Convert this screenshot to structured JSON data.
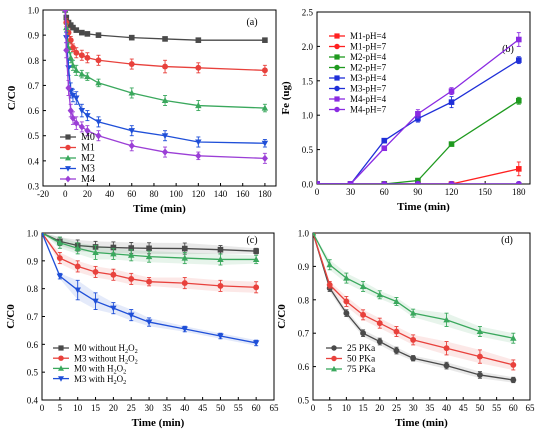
{
  "chart_data": [
    {
      "id": "a",
      "type": "line",
      "panel_label": "(a)",
      "xlabel": "Time (min)",
      "ylabel": "C/C0",
      "xlim": [
        -20,
        190
      ],
      "ylim": [
        0.3,
        1.0
      ],
      "xticks": [
        -20,
        0,
        20,
        40,
        60,
        80,
        100,
        120,
        140,
        160,
        180
      ],
      "yticks": [
        0.3,
        0.4,
        0.5,
        0.6,
        0.7,
        0.8,
        0.9,
        1.0
      ],
      "legend_position": "bottom-left",
      "series": [
        {
          "name": "M0",
          "color": "#4a4a4a",
          "marker": "square",
          "x": [
            0,
            1,
            3,
            5,
            7,
            10,
            15,
            20,
            30,
            60,
            90,
            120,
            180
          ],
          "y": [
            1.0,
            0.97,
            0.95,
            0.94,
            0.93,
            0.92,
            0.91,
            0.905,
            0.9,
            0.89,
            0.885,
            0.88,
            0.88
          ],
          "err": [
            0,
            0.008,
            0.008,
            0.008,
            0.008,
            0.008,
            0.008,
            0.008,
            0.006,
            0.006,
            0.005,
            0.005,
            0.004
          ]
        },
        {
          "name": "M1",
          "color": "#e8413c",
          "marker": "circle",
          "x": [
            0,
            1,
            3,
            5,
            7,
            10,
            15,
            20,
            30,
            60,
            90,
            120,
            180
          ],
          "y": [
            1.0,
            0.95,
            0.91,
            0.88,
            0.85,
            0.83,
            0.82,
            0.81,
            0.8,
            0.785,
            0.775,
            0.77,
            0.76
          ],
          "err": [
            0,
            0.015,
            0.015,
            0.015,
            0.015,
            0.02,
            0.02,
            0.02,
            0.02,
            0.02,
            0.025,
            0.02,
            0.02
          ]
        },
        {
          "name": "M2",
          "color": "#3aa85d",
          "marker": "triangle-up",
          "x": [
            0,
            1,
            3,
            5,
            7,
            10,
            15,
            20,
            30,
            60,
            90,
            120,
            180
          ],
          "y": [
            1.0,
            0.93,
            0.85,
            0.81,
            0.78,
            0.76,
            0.745,
            0.735,
            0.71,
            0.67,
            0.64,
            0.62,
            0.61
          ],
          "err": [
            0,
            0.015,
            0.02,
            0.02,
            0.02,
            0.02,
            0.015,
            0.015,
            0.015,
            0.02,
            0.02,
            0.02,
            0.015
          ]
        },
        {
          "name": "M3",
          "color": "#1f4fd8",
          "marker": "triangle-down",
          "x": [
            0,
            1,
            3,
            5,
            7,
            10,
            15,
            20,
            30,
            60,
            90,
            120,
            180
          ],
          "y": [
            1.0,
            0.89,
            0.77,
            0.68,
            0.66,
            0.65,
            0.6,
            0.58,
            0.555,
            0.52,
            0.5,
            0.475,
            0.47
          ],
          "err": [
            0,
            0.02,
            0.03,
            0.03,
            0.025,
            0.025,
            0.025,
            0.02,
            0.02,
            0.02,
            0.02,
            0.02,
            0.015
          ]
        },
        {
          "name": "M4",
          "color": "#9b3fd6",
          "marker": "diamond",
          "x": [
            0,
            1,
            3,
            5,
            7,
            10,
            15,
            20,
            30,
            60,
            90,
            120,
            180
          ],
          "y": [
            1.0,
            0.84,
            0.69,
            0.6,
            0.57,
            0.55,
            0.535,
            0.52,
            0.5,
            0.46,
            0.435,
            0.42,
            0.41
          ],
          "err": [
            0,
            0.03,
            0.03,
            0.025,
            0.025,
            0.025,
            0.02,
            0.02,
            0.02,
            0.02,
            0.02,
            0.015,
            0.02
          ]
        }
      ]
    },
    {
      "id": "b",
      "type": "line",
      "panel_label": "(b)",
      "xlabel": "Time (min)",
      "ylabel": "Fe (ug)",
      "xlim": [
        0,
        190
      ],
      "ylim": [
        0.0,
        2.5
      ],
      "xticks": [
        0,
        30,
        60,
        90,
        120,
        150,
        180
      ],
      "yticks": [
        0.0,
        0.5,
        1.0,
        1.5,
        2.0,
        2.5
      ],
      "legend_position": "top-left",
      "series": [
        {
          "name": "M1-pH=4",
          "color": "#ff2020",
          "marker": "square",
          "x": [
            0,
            30,
            60,
            90,
            120,
            180
          ],
          "y": [
            0,
            0,
            0,
            0,
            0,
            0.22
          ],
          "err": [
            0,
            0,
            0,
            0,
            0,
            0.1
          ]
        },
        {
          "name": "M1-pH=7",
          "color": "#ff2020",
          "marker": "circle",
          "x": [
            0,
            30,
            60,
            90,
            120,
            180
          ],
          "y": [
            0,
            0,
            0,
            0,
            0,
            0
          ],
          "err": [
            0,
            0,
            0,
            0,
            0,
            0
          ]
        },
        {
          "name": "M2-pH=4",
          "color": "#1f9a1f",
          "marker": "square",
          "x": [
            0,
            30,
            60,
            90,
            120,
            180
          ],
          "y": [
            0,
            0,
            0,
            0.05,
            0.58,
            1.21
          ],
          "err": [
            0,
            0,
            0,
            0.01,
            0.02,
            0.05
          ]
        },
        {
          "name": "M2-pH=7",
          "color": "#1f9a1f",
          "marker": "circle",
          "x": [
            0,
            30,
            60,
            90,
            120,
            180
          ],
          "y": [
            0,
            0,
            0,
            0,
            0,
            0
          ],
          "err": [
            0,
            0,
            0,
            0,
            0,
            0
          ]
        },
        {
          "name": "M3-pH=4",
          "color": "#1f2fd8",
          "marker": "square",
          "x": [
            0,
            30,
            60,
            90,
            120,
            180
          ],
          "y": [
            0,
            0,
            0.63,
            0.95,
            1.19,
            1.8
          ],
          "err": [
            0,
            0,
            0.03,
            0.05,
            0.08,
            0.05
          ]
        },
        {
          "name": "M3-pH=7",
          "color": "#1f2fd8",
          "marker": "circle",
          "x": [
            0,
            30,
            60,
            90,
            120,
            180
          ],
          "y": [
            0,
            0,
            0,
            0,
            0,
            0
          ],
          "err": [
            0,
            0,
            0,
            0,
            0,
            0
          ]
        },
        {
          "name": "M4-pH=4",
          "color": "#8a2be2",
          "marker": "square",
          "x": [
            0,
            30,
            60,
            90,
            120,
            180
          ],
          "y": [
            0,
            0,
            0.52,
            1.02,
            1.35,
            2.1
          ],
          "err": [
            0,
            0,
            0.03,
            0.06,
            0.05,
            0.1
          ]
        },
        {
          "name": "M4-pH=7",
          "color": "#8a2be2",
          "marker": "circle",
          "x": [
            0,
            30,
            60,
            90,
            120,
            180
          ],
          "y": [
            0,
            0,
            0,
            0,
            0,
            0
          ],
          "err": [
            0,
            0,
            0,
            0,
            0,
            0
          ]
        }
      ]
    },
    {
      "id": "c",
      "type": "line",
      "panel_label": "(c)",
      "xlabel": "Time (min)",
      "ylabel": "C/C0",
      "xlim": [
        0,
        65
      ],
      "ylim": [
        0.4,
        1.0
      ],
      "xticks": [
        0,
        5,
        10,
        15,
        20,
        25,
        30,
        35,
        40,
        45,
        50,
        55,
        60,
        65
      ],
      "yticks": [
        0.4,
        0.5,
        0.6,
        0.7,
        0.8,
        0.9,
        1.0
      ],
      "legend_position": "bottom-left",
      "series": [
        {
          "name": "M0 without H",
          "sub": "2",
          "name2": "O",
          "sub2": "2",
          "color": "#4a4a4a",
          "marker": "square",
          "x": [
            0,
            5,
            10,
            15,
            20,
            25,
            30,
            40,
            50,
            60
          ],
          "y": [
            1.0,
            0.97,
            0.955,
            0.95,
            0.948,
            0.946,
            0.945,
            0.944,
            0.94,
            0.935
          ],
          "err": [
            0,
            0.015,
            0.02,
            0.02,
            0.02,
            0.02,
            0.02,
            0.02,
            0.015,
            0.01
          ]
        },
        {
          "name": "M3 without H",
          "sub": "2",
          "name2": "O",
          "sub2": "2",
          "color": "#e8413c",
          "marker": "circle",
          "x": [
            0,
            5,
            10,
            15,
            20,
            25,
            30,
            40,
            50,
            60
          ],
          "y": [
            1.0,
            0.91,
            0.88,
            0.86,
            0.85,
            0.835,
            0.825,
            0.82,
            0.81,
            0.805
          ],
          "err": [
            0,
            0.02,
            0.02,
            0.02,
            0.02,
            0.02,
            0.015,
            0.02,
            0.02,
            0.02
          ]
        },
        {
          "name": "M0 with H",
          "sub": "2",
          "name2": "O",
          "sub2": "2",
          "color": "#3aa85d",
          "marker": "triangle-up",
          "x": [
            0,
            5,
            10,
            15,
            20,
            25,
            30,
            40,
            50,
            60
          ],
          "y": [
            1.0,
            0.965,
            0.945,
            0.93,
            0.925,
            0.92,
            0.915,
            0.91,
            0.905,
            0.905
          ],
          "err": [
            0,
            0.02,
            0.02,
            0.025,
            0.02,
            0.02,
            0.02,
            0.02,
            0.02,
            0.015
          ]
        },
        {
          "name": "M3 with H",
          "sub": "2",
          "name2": "O",
          "sub2": "2",
          "color": "#1f4fd8",
          "marker": "triangle-down",
          "x": [
            0,
            5,
            10,
            15,
            20,
            25,
            30,
            40,
            50,
            60
          ],
          "y": [
            1.0,
            0.845,
            0.795,
            0.755,
            0.73,
            0.705,
            0.68,
            0.655,
            0.63,
            0.605
          ],
          "err": [
            0,
            0.01,
            0.035,
            0.03,
            0.02,
            0.02,
            0.015,
            0.01,
            0.01,
            0.01
          ]
        }
      ]
    },
    {
      "id": "d",
      "type": "line",
      "panel_label": "(d)",
      "xlabel": "Time (min)",
      "ylabel": "C/C0",
      "xlim": [
        0,
        65
      ],
      "ylim": [
        0.5,
        1.0
      ],
      "xticks": [
        0,
        5,
        10,
        15,
        20,
        25,
        30,
        35,
        40,
        45,
        50,
        55,
        60,
        65
      ],
      "yticks": [
        0.5,
        0.6,
        0.7,
        0.8,
        0.9,
        1.0
      ],
      "legend_position": "bottom-left",
      "series": [
        {
          "name": "25 PKa",
          "color": "#4a4a4a",
          "marker": "circle",
          "x": [
            0,
            5,
            10,
            15,
            20,
            25,
            30,
            40,
            50,
            60
          ],
          "y": [
            1.0,
            0.835,
            0.76,
            0.7,
            0.675,
            0.648,
            0.625,
            0.603,
            0.575,
            0.56
          ],
          "err": [
            0,
            0.01,
            0.01,
            0.01,
            0.01,
            0.01,
            0.008,
            0.01,
            0.01,
            0.008
          ]
        },
        {
          "name": "50 PKa",
          "color": "#e8413c",
          "marker": "circle",
          "x": [
            0,
            5,
            10,
            15,
            20,
            25,
            30,
            40,
            50,
            60
          ],
          "y": [
            1.0,
            0.845,
            0.795,
            0.755,
            0.73,
            0.705,
            0.68,
            0.655,
            0.63,
            0.605
          ],
          "err": [
            0,
            0.01,
            0.015,
            0.015,
            0.015,
            0.015,
            0.015,
            0.02,
            0.02,
            0.015
          ]
        },
        {
          "name": "75 PKa",
          "color": "#3aa85d",
          "marker": "triangle-up",
          "x": [
            0,
            5,
            10,
            15,
            20,
            25,
            30,
            40,
            50,
            60
          ],
          "y": [
            1.0,
            0.905,
            0.865,
            0.84,
            0.815,
            0.795,
            0.76,
            0.74,
            0.705,
            0.685
          ],
          "err": [
            0,
            0.015,
            0.015,
            0.015,
            0.012,
            0.012,
            0.012,
            0.02,
            0.015,
            0.015
          ]
        }
      ]
    }
  ]
}
